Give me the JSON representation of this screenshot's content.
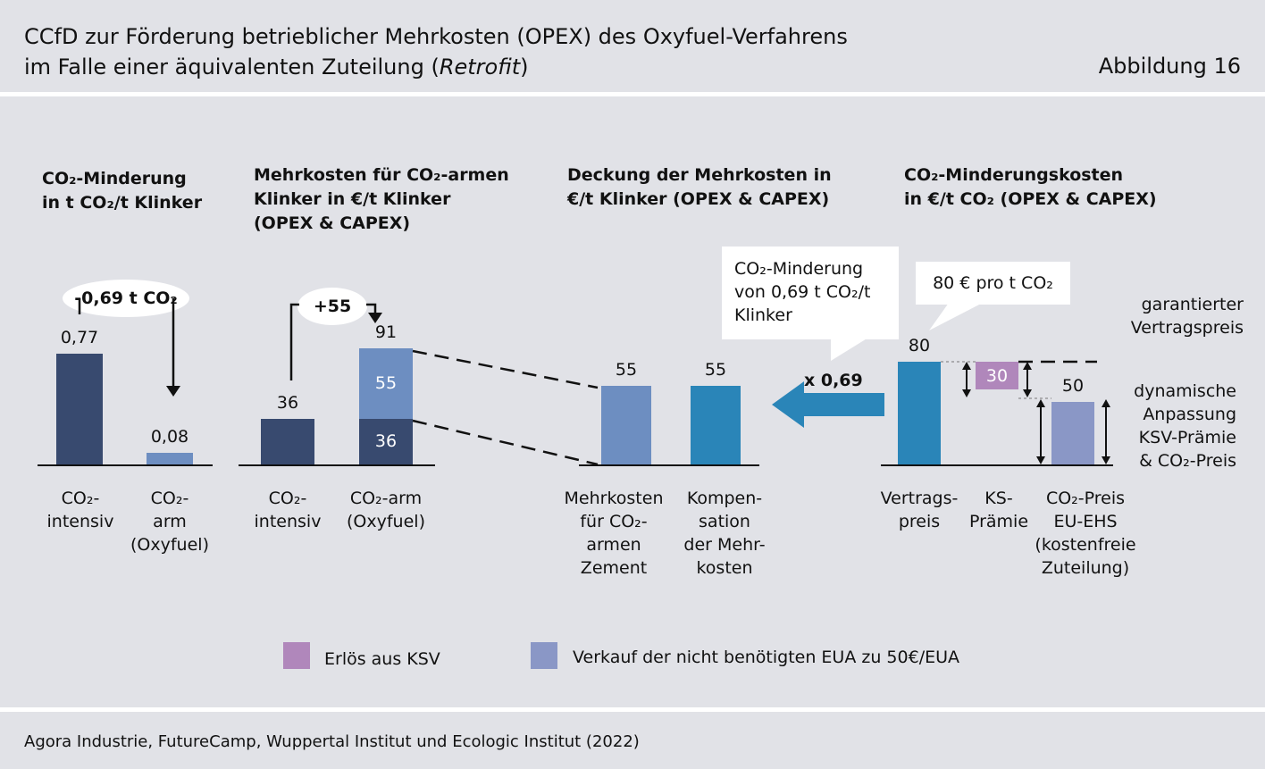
{
  "header": {
    "title_line1": "CCfD zur Förderung betrieblicher Mehrkosten (OPEX) des Oxyfuel-Verfahrens",
    "title_line2_pre": "im Falle einer äquivalenten Zuteilung (",
    "title_line2_italic": "Retrofit",
    "title_line2_post": ")",
    "figure_label": "Abbildung 16"
  },
  "colors": {
    "dark_navy": "#384a6f",
    "light_blue": "#6d8ec1",
    "teal_blue": "#2a85b8",
    "lavender": "#8a97c6",
    "purple": "#b087bb",
    "background": "#e1e2e7"
  },
  "panels": {
    "p1": {
      "heading_line1": "CO₂-Minderung",
      "heading_line2": "in t CO₂/t Klinker",
      "annotation": "-0,69 t CO₂"
    },
    "p2": {
      "heading_line1": "Mehrkosten für CO₂-armen",
      "heading_line2": "Klinker in €/t Klinker",
      "heading_line3": "(OPEX & CAPEX)",
      "annotation": "+55"
    },
    "p3": {
      "heading_line1": "Deckung der Mehrkosten in",
      "heading_line2": "€/t Klinker (OPEX & CAPEX)",
      "callout_line1": "CO₂-Minderung",
      "callout_line2": "von 0,69 t CO₂/t",
      "callout_line3": "Klinker",
      "multiplier": "x 0,69"
    },
    "p4": {
      "heading_line1": "CO₂-Minderungskosten",
      "heading_line2": "in €/t CO₂ (OPEX & CAPEX)",
      "callout": "80 € pro t CO₂",
      "note1_line1": "garantierter",
      "note1_line2": "Vertragspreis",
      "note2_line1": "dynamische",
      "note2_line2": "Anpassung",
      "note2_line3": "KSV-Prämie",
      "note2_line4": "& CO₂-Preis"
    }
  },
  "chart_data": [
    {
      "type": "bar",
      "title": "CO₂-Minderung in t CO₂/t Klinker",
      "categories": [
        "CO₂-intensiv",
        "CO₂-arm (Oxyfuel)"
      ],
      "values": [
        0.77,
        0.08
      ],
      "value_labels": [
        "0,77",
        "0,08"
      ],
      "category_labels": [
        [
          "CO₂-",
          "intensiv"
        ],
        [
          "CO₂-",
          "arm",
          "(Oxyfuel)"
        ]
      ]
    },
    {
      "type": "bar",
      "title": "Mehrkosten für CO₂-armen Klinker in €/t Klinker (OPEX & CAPEX)",
      "categories": [
        "CO₂-intensiv",
        "CO₂-arm (Oxyfuel)"
      ],
      "series": [
        {
          "values": [
            36,
            36
          ]
        },
        {
          "values": [
            0,
            55
          ]
        }
      ],
      "totals": [
        36,
        91
      ],
      "value_labels": [
        "36",
        "91"
      ],
      "segment_labels": [
        "36",
        "55"
      ],
      "category_labels": [
        [
          "CO₂-",
          "intensiv"
        ],
        [
          "CO₂-arm",
          "(Oxyfuel)"
        ]
      ]
    },
    {
      "type": "bar",
      "title": "Deckung der Mehrkosten in €/t Klinker (OPEX & CAPEX)",
      "categories": [
        "Mehrkosten für CO₂-armen Zement",
        "Kompensation der Mehrkosten"
      ],
      "values": [
        55,
        55
      ],
      "value_labels": [
        "55",
        "55"
      ],
      "category_labels": [
        [
          "Mehrkosten",
          "für CO₂-",
          "armen",
          "Zement"
        ],
        [
          "Kompen-",
          "sation",
          "der Mehr-",
          "kosten"
        ]
      ]
    },
    {
      "type": "bar",
      "title": "CO₂-Minderungskosten in €/t CO₂ (OPEX & CAPEX)",
      "categories": [
        "Vertragspreis",
        "KS-Prämie",
        "CO₂-Preis EU-EHS (kostenfreie Zuteilung)"
      ],
      "values": [
        80,
        30,
        50
      ],
      "value_labels": [
        "80",
        "30",
        "50"
      ],
      "category_labels": [
        [
          "Vertrags-",
          "preis"
        ],
        [
          "KS-",
          "Prämie"
        ],
        [
          "CO₂-Preis",
          "EU-EHS",
          "(kostenfreie",
          "Zuteilung)"
        ]
      ]
    }
  ],
  "legend": [
    {
      "label": "Erlös aus KSV",
      "color": "#b087bb"
    },
    {
      "label": "Verkauf der nicht benötigten EUA zu 50€/EUA",
      "color": "#8a97c6"
    }
  ],
  "source": "Agora Industrie, FutureCamp, Wuppertal Institut und Ecologic Institut (2022)"
}
